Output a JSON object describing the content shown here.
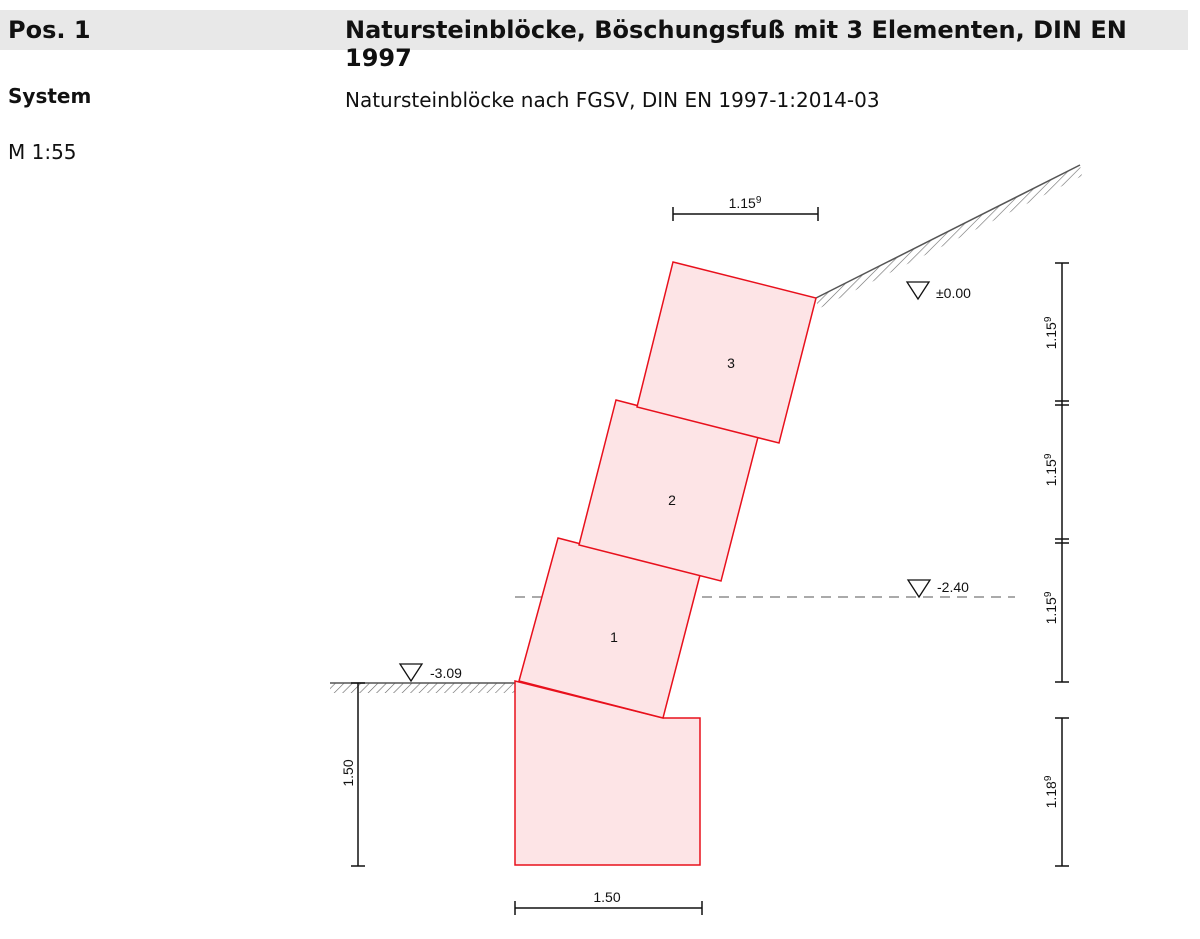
{
  "header": {
    "position": "Pos. 1",
    "title": "Natursteinblöcke, Böschungsfuß mit 3 Elementen, DIN EN 1997"
  },
  "section": {
    "label": "System",
    "description": "Natursteinblöcke nach FGSV, DIN EN 1997-1:2014-03"
  },
  "scale": "M 1:55",
  "drawing": {
    "blocks": [
      "1",
      "2",
      "3"
    ],
    "levels": [
      "±0.00",
      "-2.40",
      "-3.09"
    ],
    "dimensions": {
      "top_width": {
        "value": "1.15",
        "sup": "9"
      },
      "base_width": "1.50",
      "embedment": "1.50",
      "heights": [
        {
          "value": "1.15",
          "sup": "9"
        },
        {
          "value": "1.15",
          "sup": "9"
        },
        {
          "value": "1.15",
          "sup": "9"
        },
        {
          "value": "1.18",
          "sup": "9"
        }
      ]
    }
  }
}
